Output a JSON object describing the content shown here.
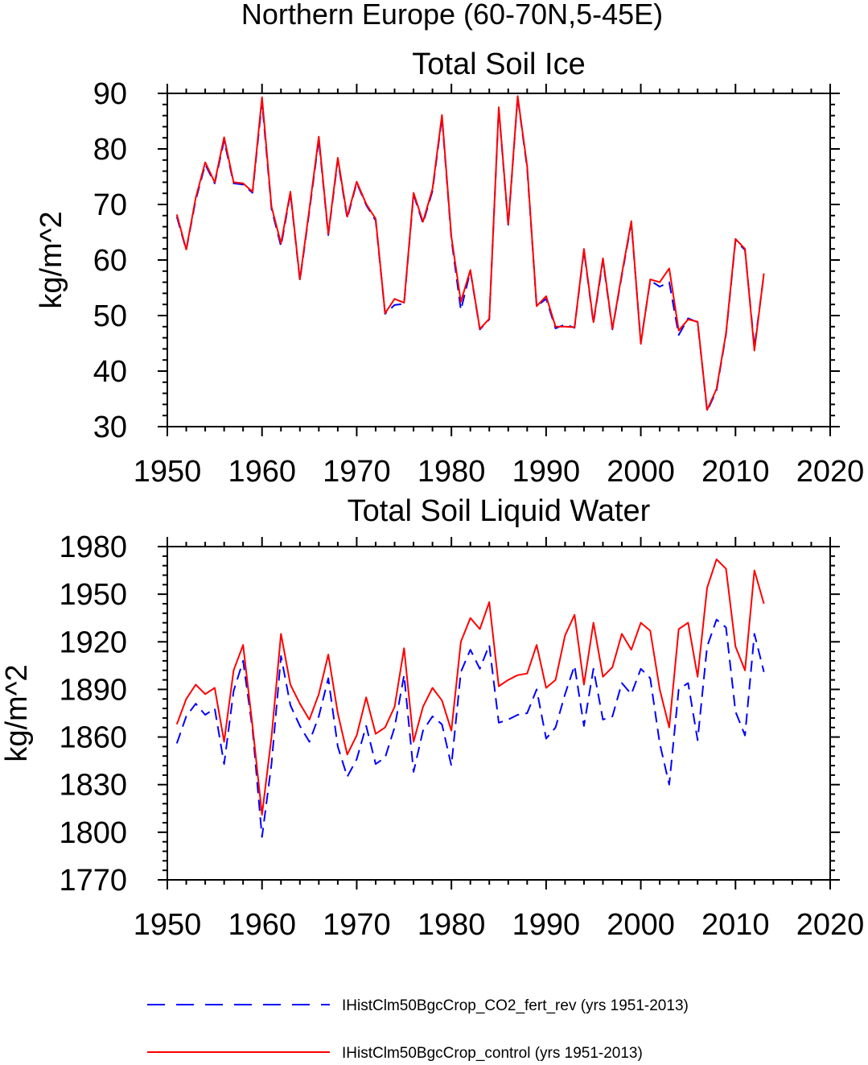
{
  "figure_title": "Northern Europe (60-70N,5-45E)",
  "chart_data": [
    {
      "type": "line",
      "title": "Total Soil Ice",
      "xlabel": "",
      "ylabel": "kg/m^2",
      "xlim": [
        1950,
        2020
      ],
      "ylim": [
        30,
        90
      ],
      "xticks": [
        1950,
        1960,
        1970,
        1980,
        1990,
        2000,
        2010,
        2020
      ],
      "yticks": [
        30,
        40,
        50,
        60,
        70,
        80,
        90
      ],
      "x_start": 1951,
      "series": [
        {
          "name": "IHistClm50BgcCrop_CO2_fert_rev (yrs 1951-2013)",
          "color": "#0000ff",
          "dash": "dashed",
          "values": [
            67.8,
            61.8,
            70.8,
            77.2,
            73.8,
            81.5,
            73.8,
            73.6,
            72.1,
            88.5,
            69.2,
            62.5,
            72.0,
            56.3,
            68.8,
            81.7,
            64.5,
            78.0,
            67.5,
            73.9,
            69.9,
            67.1,
            50.3,
            51.9,
            52.1,
            71.8,
            66.6,
            72.4,
            85.7,
            63.8,
            51.0,
            58.0,
            47.5,
            49.3,
            87.2,
            66.2,
            89.3,
            76.5,
            51.7,
            53.0,
            47.7,
            48.4,
            47.8,
            61.7,
            48.6,
            59.9,
            47.5,
            57.2,
            66.7,
            45.2,
            56.3,
            55.2,
            56.0,
            46.5,
            49.5,
            48.8,
            32.8,
            36.5,
            46.6,
            63.5,
            61.8,
            44.3,
            57.4
          ]
        },
        {
          "name": "IHistClm50BgcCrop_control (yrs 1951-2013)",
          "color": "#ff0000",
          "dash": "solid",
          "values": [
            68.2,
            61.9,
            71.2,
            77.6,
            74.0,
            82.1,
            74.0,
            73.8,
            72.3,
            89.3,
            69.6,
            63.0,
            72.3,
            56.5,
            69.2,
            82.2,
            64.7,
            78.4,
            67.8,
            74.1,
            70.1,
            67.4,
            50.4,
            53.0,
            52.3,
            72.1,
            66.9,
            72.8,
            86.1,
            64.2,
            52.5,
            58.2,
            47.6,
            49.4,
            87.5,
            66.4,
            89.5,
            76.9,
            51.7,
            53.5,
            48.0,
            48.0,
            47.9,
            62.0,
            48.8,
            60.3,
            47.6,
            57.5,
            67.0,
            44.9,
            56.5,
            56.0,
            58.5,
            47.3,
            49.3,
            48.9,
            33.0,
            36.8,
            46.8,
            63.8,
            62.0,
            43.7,
            57.6
          ]
        }
      ]
    },
    {
      "type": "line",
      "title": "Total Soil Liquid Water",
      "xlabel": "",
      "ylabel": "kg/m^2",
      "xlim": [
        1950,
        2020
      ],
      "ylim": [
        1770,
        1980
      ],
      "xticks": [
        1950,
        1960,
        1970,
        1980,
        1990,
        2000,
        2010,
        2020
      ],
      "yticks": [
        1770,
        1800,
        1830,
        1860,
        1890,
        1920,
        1950,
        1980
      ],
      "x_start": 1951,
      "series": [
        {
          "name": "IHistClm50BgcCrop_CO2_fert_rev (yrs 1951-2013)",
          "color": "#0000ff",
          "dash": "dashed",
          "values": [
            1856,
            1873,
            1881,
            1874,
            1878,
            1843,
            1889,
            1908,
            1865,
            1797,
            1843,
            1911,
            1880,
            1867,
            1857,
            1873,
            1897,
            1854,
            1835,
            1846,
            1867,
            1843,
            1847,
            1866,
            1899,
            1838,
            1864,
            1873,
            1868,
            1842,
            1901,
            1915,
            1903,
            1918,
            1869,
            1871,
            1874,
            1875,
            1890,
            1859,
            1866,
            1887,
            1905,
            1867,
            1903,
            1871,
            1873,
            1894,
            1887,
            1903,
            1897,
            1856,
            1830,
            1890,
            1894,
            1858,
            1917,
            1934,
            1929,
            1876,
            1861,
            1925,
            1901
          ]
        },
        {
          "name": "IHistClm50BgcCrop_control (yrs 1951-2013)",
          "color": "#ff0000",
          "dash": "solid",
          "values": [
            1868,
            1884,
            1893,
            1887,
            1891,
            1857,
            1902,
            1918,
            1867,
            1811,
            1860,
            1925,
            1893,
            1881,
            1871,
            1887,
            1912,
            1875,
            1849,
            1861,
            1885,
            1862,
            1866,
            1879,
            1916,
            1857,
            1879,
            1891,
            1883,
            1864,
            1920,
            1935,
            1928,
            1945,
            1892,
            1896,
            1899,
            1900,
            1918,
            1891,
            1896,
            1924,
            1937,
            1893,
            1932,
            1898,
            1904,
            1925,
            1915,
            1932,
            1927,
            1890,
            1866,
            1928,
            1932,
            1898,
            1954,
            1972,
            1966,
            1917,
            1902,
            1965,
            1944
          ]
        }
      ]
    }
  ],
  "legend": [
    {
      "label": "IHistClm50BgcCrop_CO2_fert_rev (yrs 1951-2013)",
      "color": "#0000ff",
      "dash": "dashed"
    },
    {
      "label": "IHistClm50BgcCrop_control (yrs 1951-2013)",
      "color": "#ff0000",
      "dash": "solid"
    }
  ]
}
